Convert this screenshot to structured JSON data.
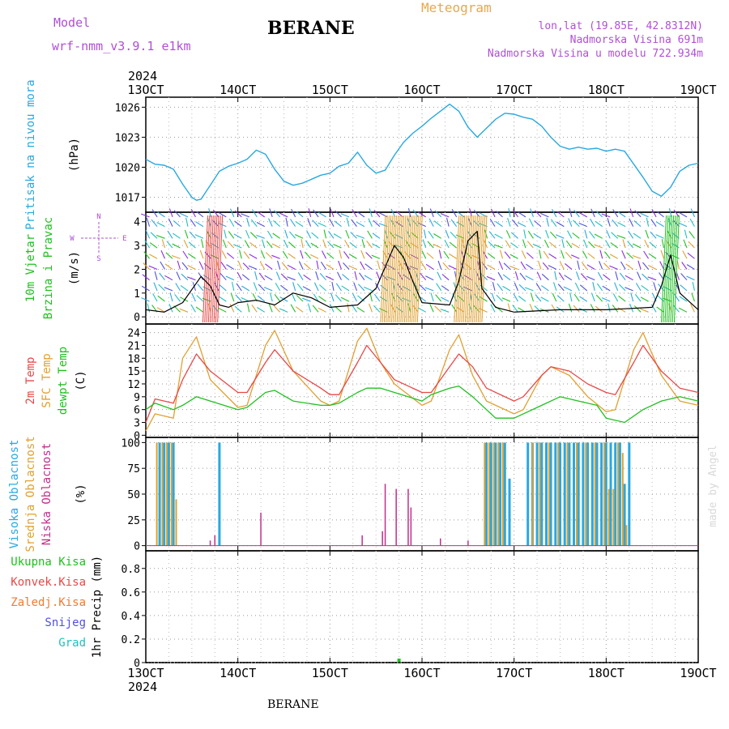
{
  "header": {
    "model_label": "Model",
    "model_name": "wrf-nmm_v3.9.1  e1km",
    "station": "BERANE",
    "chart_kind": "Meteogram",
    "lonlat": "lon,lat (19.85E, 42.8312N)",
    "elevation": "Nadmorska Visina 691m",
    "elevation_model": "Nadmorska Visina u modelu 722.934m",
    "footer_station": "BERANE",
    "credit": "made by Angel"
  },
  "colors": {
    "pressure": "#29a8e0",
    "temp2m": "#e84848",
    "sfc_temp": "#e0a030",
    "dewpt": "#20c020",
    "high_cloud": "#29a8e0",
    "mid_cloud": "#e0a030",
    "low_cloud": "#c0308a",
    "wind_speed": "#000000",
    "gust": "#e84848",
    "precip_total": "#20c020",
    "precip_conv": "#e84848",
    "precip_frozen": "#f07a30",
    "snow": "#5050e0",
    "graupel": "#20c0c0",
    "label_purple": "#b04fd6"
  },
  "chart_data": [
    {
      "type": "line",
      "panel": "pressure",
      "ylabel_lines": [
        "Pritisak na nivou mora"
      ],
      "unit": "(hPa)",
      "ylim": [
        1015.5,
        1027
      ],
      "yticks": [
        1017,
        1020,
        1023,
        1026
      ],
      "x_start": "13OCT",
      "x_ticks": [
        "13OCT",
        "14OCT",
        "15OCT",
        "16OCT",
        "17OCT",
        "18OCT",
        "19OCT"
      ],
      "x_year": "2024",
      "grid": true,
      "series": [
        {
          "x": [
            13.0,
            13.1,
            13.2,
            13.3,
            13.4,
            13.5,
            13.55,
            13.6,
            13.7,
            13.8,
            13.9,
            14.0,
            14.1,
            14.2,
            14.3,
            14.4,
            14.5,
            14.6,
            14.7,
            14.8,
            14.9,
            15.0,
            15.1,
            15.2,
            15.3,
            15.4,
            15.5,
            15.6,
            15.7,
            15.8,
            15.9,
            16.0,
            16.1,
            16.2,
            16.3,
            16.4,
            16.5,
            16.6,
            16.7,
            16.8,
            16.9,
            17.0,
            17.1,
            17.2,
            17.3,
            17.4,
            17.5,
            17.6,
            17.7,
            17.8,
            17.9,
            18.0,
            18.1,
            18.2,
            18.3,
            18.4,
            18.5,
            18.6,
            18.7,
            18.8,
            18.9,
            19.0
          ],
          "values": [
            1020.8,
            1020.3,
            1020.2,
            1019.8,
            1018.3,
            1017.0,
            1016.7,
            1016.8,
            1018.2,
            1019.6,
            1020.1,
            1020.4,
            1020.8,
            1021.7,
            1021.3,
            1019.8,
            1018.6,
            1018.2,
            1018.4,
            1018.8,
            1019.2,
            1019.4,
            1020.1,
            1020.4,
            1021.5,
            1020.2,
            1019.4,
            1019.7,
            1021.2,
            1022.5,
            1023.4,
            1024.1,
            1024.9,
            1025.6,
            1026.3,
            1025.6,
            1024.0,
            1023.0,
            1023.9,
            1024.8,
            1025.4,
            1025.3,
            1025.0,
            1024.8,
            1024.1,
            1023.0,
            1022.1,
            1021.8,
            1022.0,
            1021.8,
            1021.9,
            1021.6,
            1021.8,
            1021.6,
            1020.3,
            1019.0,
            1017.6,
            1017.1,
            1018.0,
            1019.6,
            1020.2,
            1020.4
          ]
        }
      ]
    },
    {
      "type": "line",
      "panel": "wind",
      "ylabel_lines": [
        "10m Vjetar",
        "Brzina i Pravac"
      ],
      "unit": "(m/s)",
      "compass": {
        "n": "N",
        "s": "S",
        "w": "W",
        "e": "E"
      },
      "ylim": [
        -0.3,
        4.4
      ],
      "yticks": [
        0,
        1,
        2,
        3,
        4
      ],
      "grid": true,
      "series": [
        {
          "name": "speed",
          "x": [
            13.0,
            13.2,
            13.4,
            13.6,
            13.7,
            13.8,
            13.9,
            14.0,
            14.2,
            14.4,
            14.6,
            14.8,
            15.0,
            15.3,
            15.5,
            15.7,
            15.8,
            15.9,
            16.0,
            16.3,
            16.4,
            16.5,
            16.6,
            16.65,
            16.8,
            17.0,
            17.5,
            18.0,
            18.5,
            18.6,
            18.7,
            18.8,
            19.0
          ],
          "values": [
            0.3,
            0.2,
            0.6,
            1.7,
            1.3,
            0.5,
            0.4,
            0.6,
            0.7,
            0.5,
            1.0,
            0.8,
            0.4,
            0.5,
            1.2,
            3.0,
            2.5,
            1.5,
            0.6,
            0.5,
            1.5,
            3.2,
            3.6,
            1.2,
            0.4,
            0.2,
            0.3,
            0.3,
            0.4,
            1.3,
            2.6,
            1.0,
            0.3
          ]
        }
      ]
    },
    {
      "type": "line",
      "panel": "temperature",
      "ylabel_lines": [
        "2m Temp",
        "SFC Temp",
        "dewpt Temp"
      ],
      "unit": "(C)",
      "ylim": [
        -0.5,
        26
      ],
      "yticks": [
        0,
        3,
        6,
        9,
        12,
        15,
        18,
        21,
        24
      ],
      "grid": true,
      "series": [
        {
          "name": "2m Temp",
          "x": [
            13.0,
            13.1,
            13.3,
            13.4,
            13.55,
            13.7,
            14.0,
            14.1,
            14.3,
            14.4,
            14.6,
            14.9,
            15.0,
            15.1,
            15.3,
            15.4,
            15.55,
            15.7,
            16.0,
            16.1,
            16.3,
            16.4,
            16.55,
            16.7,
            17.0,
            17.1,
            17.3,
            17.4,
            17.6,
            17.8,
            18.0,
            18.1,
            18.3,
            18.4,
            18.6,
            18.8,
            19.0
          ],
          "values": [
            3,
            8.5,
            7.5,
            13,
            19,
            15,
            10,
            10,
            17,
            20,
            15,
            11,
            9.5,
            9.5,
            17,
            21,
            17,
            13,
            10,
            10,
            16,
            19,
            16,
            11,
            8,
            9,
            14,
            16,
            15,
            12,
            10,
            9.5,
            17,
            21,
            15,
            11,
            10
          ]
        },
        {
          "name": "SFC Temp",
          "x": [
            13.0,
            13.1,
            13.3,
            13.4,
            13.55,
            13.7,
            14.0,
            14.1,
            14.3,
            14.4,
            14.6,
            14.9,
            15.0,
            15.1,
            15.3,
            15.4,
            15.55,
            15.7,
            16.0,
            16.1,
            16.3,
            16.4,
            16.55,
            16.7,
            17.0,
            17.1,
            17.3,
            17.4,
            17.6,
            17.8,
            18.0,
            18.1,
            18.3,
            18.4,
            18.6,
            18.8,
            19.0
          ],
          "values": [
            1,
            5,
            4,
            18,
            23,
            13,
            6.5,
            7,
            21,
            24.5,
            15,
            8,
            7,
            8,
            22,
            25,
            17,
            12,
            7,
            8,
            20,
            23.5,
            14,
            8,
            5,
            6,
            14,
            16,
            14,
            9,
            5.5,
            6,
            20,
            24,
            14,
            8,
            7
          ]
        },
        {
          "name": "dewpt Temp",
          "x": [
            13.0,
            13.1,
            13.3,
            13.4,
            13.55,
            13.7,
            14.0,
            14.1,
            14.3,
            14.4,
            14.6,
            14.9,
            15.0,
            15.1,
            15.3,
            15.4,
            15.55,
            15.7,
            16.0,
            16.1,
            16.3,
            16.4,
            16.55,
            16.7,
            16.8,
            17.0,
            17.3,
            17.5,
            17.7,
            17.9,
            18.0,
            18.2,
            18.4,
            18.6,
            18.8,
            19.0
          ],
          "values": [
            6,
            7.5,
            6,
            7,
            9,
            8,
            6,
            6.5,
            10,
            10.5,
            8,
            7,
            7,
            7.5,
            10,
            11,
            11,
            10,
            8,
            9.5,
            11,
            11.5,
            9,
            6,
            4,
            4,
            7,
            9,
            8,
            7,
            4,
            3,
            6,
            8,
            9,
            8
          ]
        }
      ]
    },
    {
      "type": "bar",
      "panel": "clouds",
      "ylabel_lines": [
        "Visoka Oblacnost",
        "Srednja Oblacnost",
        "Niska Oblacnost"
      ],
      "unit": "(%)",
      "ylim": [
        -5,
        105
      ],
      "yticks": [
        0,
        25,
        50,
        75,
        100
      ],
      "grid": true,
      "series": [
        {
          "name": "Visoka Oblacnost",
          "x": [
            13.15,
            13.2,
            13.25,
            13.3,
            13.8,
            16.7,
            16.75,
            16.8,
            16.85,
            16.9,
            16.95,
            17.15,
            17.2,
            17.25,
            17.3,
            17.35,
            17.4,
            17.45,
            17.5,
            17.55,
            17.6,
            17.65,
            17.7,
            17.75,
            17.8,
            17.85,
            17.9,
            17.95,
            18.0,
            18.05,
            18.1,
            18.15,
            18.2,
            18.25
          ],
          "values": [
            100,
            100,
            100,
            100,
            100,
            100,
            100,
            100,
            100,
            100,
            65,
            100,
            100,
            100,
            100,
            100,
            100,
            100,
            100,
            100,
            100,
            100,
            100,
            100,
            100,
            100,
            100,
            100,
            100,
            100,
            100,
            100,
            60,
            100
          ]
        },
        {
          "name": "Srednja Oblacnost",
          "x": [
            13.12,
            13.18,
            13.23,
            13.28,
            13.33,
            16.68,
            16.73,
            16.78,
            16.83,
            16.88,
            17.2,
            17.28,
            17.38,
            17.48,
            17.58,
            17.68,
            17.78,
            17.88,
            17.98,
            18.03,
            18.08,
            18.13,
            18.18,
            18.22
          ],
          "values": [
            100,
            100,
            100,
            100,
            45,
            100,
            100,
            100,
            100,
            100,
            100,
            100,
            100,
            100,
            100,
            100,
            100,
            100,
            100,
            55,
            55,
            100,
            90,
            20
          ]
        },
        {
          "name": "Niska Oblacnost",
          "x": [
            13.7,
            13.75,
            14.25,
            15.35,
            15.57,
            15.6,
            15.72,
            15.85,
            15.88,
            16.2,
            16.5
          ],
          "values": [
            5,
            10,
            32,
            10,
            14,
            60,
            55,
            55,
            37,
            7,
            5
          ]
        }
      ]
    },
    {
      "type": "bar",
      "panel": "precip",
      "unit": "1hr Precip (mm)",
      "ylim": [
        0,
        0.95
      ],
      "yticks": [
        0,
        0.2,
        0.4,
        0.6,
        0.8
      ],
      "grid": true,
      "legend": [
        "Ukupna Kisa",
        "Konvek.Kisa",
        "Zaledj.Kisa",
        "Snijeg",
        "Grad"
      ],
      "series": [
        {
          "name": "Ukupna Kisa",
          "x": [
            15.75
          ],
          "values": [
            0.02
          ]
        }
      ]
    }
  ]
}
